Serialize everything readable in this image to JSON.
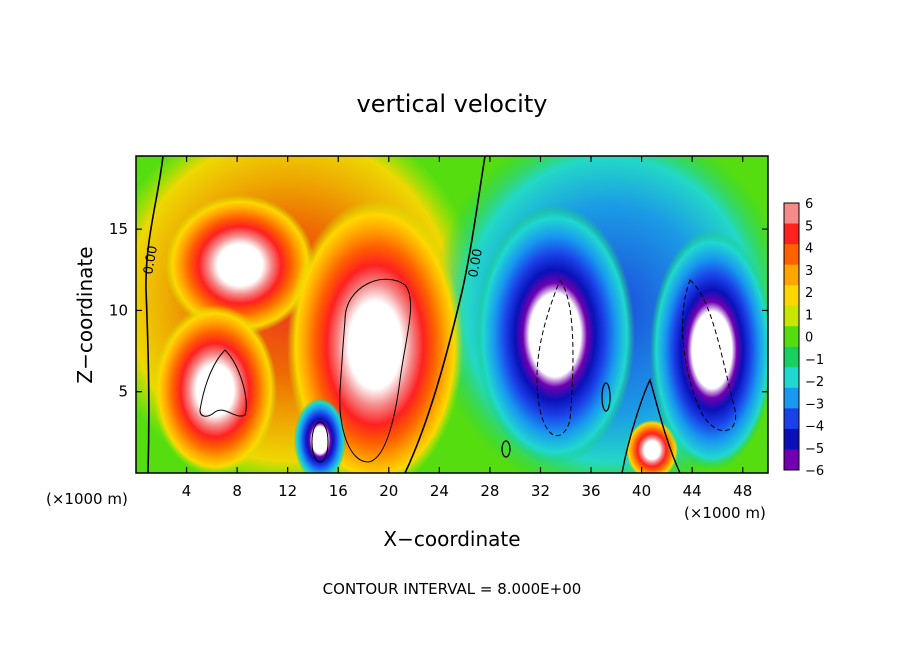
{
  "chart_data": {
    "type": "heatmap",
    "title": "vertical velocity",
    "xlabel": "X−coordinate",
    "ylabel": "Z−coordinate",
    "x_unit_left": "(×1000 m)",
    "x_unit_right": "(×1000 m)",
    "footer": "CONTOUR INTERVAL = 8.000E+00",
    "xlim": [
      0,
      50
    ],
    "ylim": [
      0,
      19.5
    ],
    "x_ticks": [
      4,
      8,
      12,
      16,
      20,
      24,
      28,
      32,
      36,
      40,
      44,
      48
    ],
    "y_ticks": [
      5,
      10,
      15
    ],
    "contour_labels": [
      "0.00",
      "0.00"
    ],
    "colorbar": {
      "ticks": [
        "6",
        "5",
        "4",
        "3",
        "2",
        "1",
        "0",
        "−1",
        "−2",
        "−3",
        "−4",
        "−5",
        "−6"
      ],
      "min": -6,
      "max": 6,
      "colors": [
        "#f48a8a",
        "#ff2020",
        "#ff6000",
        "#ffa500",
        "#ffd700",
        "#c8e600",
        "#55dd10",
        "#18d060",
        "#20d8d0",
        "#1898f0",
        "#1a40e8",
        "#0a10b8",
        "#7000b0"
      ]
    },
    "features": [
      {
        "sign": "positive",
        "x": 7.5,
        "z": 13.5,
        "peak": 6
      },
      {
        "sign": "positive",
        "x": 6.5,
        "z": 5.5,
        "peak": 6
      },
      {
        "sign": "positive",
        "x": 19,
        "z": 8.5,
        "peak": 6
      },
      {
        "sign": "positive",
        "x": 40.5,
        "z": 1.5,
        "peak": 6
      },
      {
        "sign": "negative",
        "x": 14.5,
        "z": 2.2,
        "peak": -6
      },
      {
        "sign": "negative",
        "x": 33.5,
        "z": 8.5,
        "peak": -6
      },
      {
        "sign": "negative",
        "x": 46,
        "z": 8,
        "peak": -6
      }
    ]
  }
}
